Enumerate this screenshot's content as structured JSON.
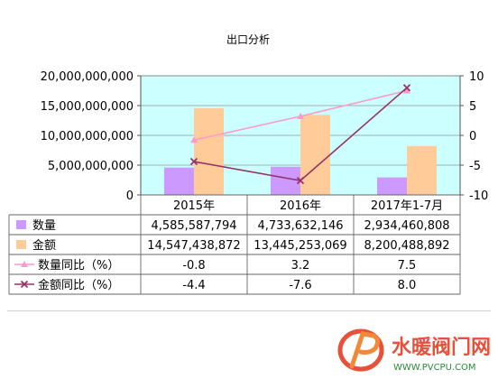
{
  "chart_data": {
    "type": "bar",
    "title": "出口分析",
    "categories": [
      "2015年",
      "2016年",
      "2017年1-7月"
    ],
    "series": [
      {
        "name": "数量",
        "kind": "bar",
        "axis": "left",
        "color": "#cc99ff",
        "values": [
          4585587794,
          4733632146,
          2934460808
        ],
        "labels": [
          "4,585,587,794",
          "4,733,632,146",
          "2,934,460,808"
        ]
      },
      {
        "name": "金额",
        "kind": "bar",
        "axis": "left",
        "color": "#ffcc99",
        "values": [
          14547438872,
          13445253069,
          8200488892
        ],
        "labels": [
          "14,547,438,872",
          "13,445,253,069",
          "8,200,488,892"
        ]
      },
      {
        "name": "数量同比（%）",
        "kind": "line",
        "axis": "right",
        "color": "#ff99cc",
        "marker": "triangle",
        "values": [
          -0.8,
          3.2,
          7.5
        ],
        "labels": [
          "-0.8",
          "3.2",
          "7.5"
        ]
      },
      {
        "name": "金额同比（%）",
        "kind": "line",
        "axis": "right",
        "color": "#993366",
        "marker": "x",
        "values": [
          -4.4,
          -7.6,
          8.0
        ],
        "labels": [
          "-4.4",
          "-7.6",
          "8.0"
        ]
      }
    ],
    "y_left": {
      "min": 0,
      "max": 20000000000,
      "ticks": [
        0,
        5000000000,
        10000000000,
        15000000000,
        20000000000
      ],
      "tick_labels": [
        "0",
        "5,000,000,000",
        "10,000,000,000",
        "15,000,000,000",
        "20,000,000,000"
      ]
    },
    "y_right": {
      "min": -10,
      "max": 10,
      "ticks": [
        -10,
        -5,
        0,
        5,
        10
      ],
      "tick_labels": [
        "-10",
        "-5",
        "0",
        "5",
        "10"
      ]
    },
    "plot_background": "#ccffff",
    "data_table": true,
    "legend": "in data table"
  },
  "watermark": {
    "brand": "水暖阀门网",
    "url": "WWW.PVCPU.COM"
  }
}
